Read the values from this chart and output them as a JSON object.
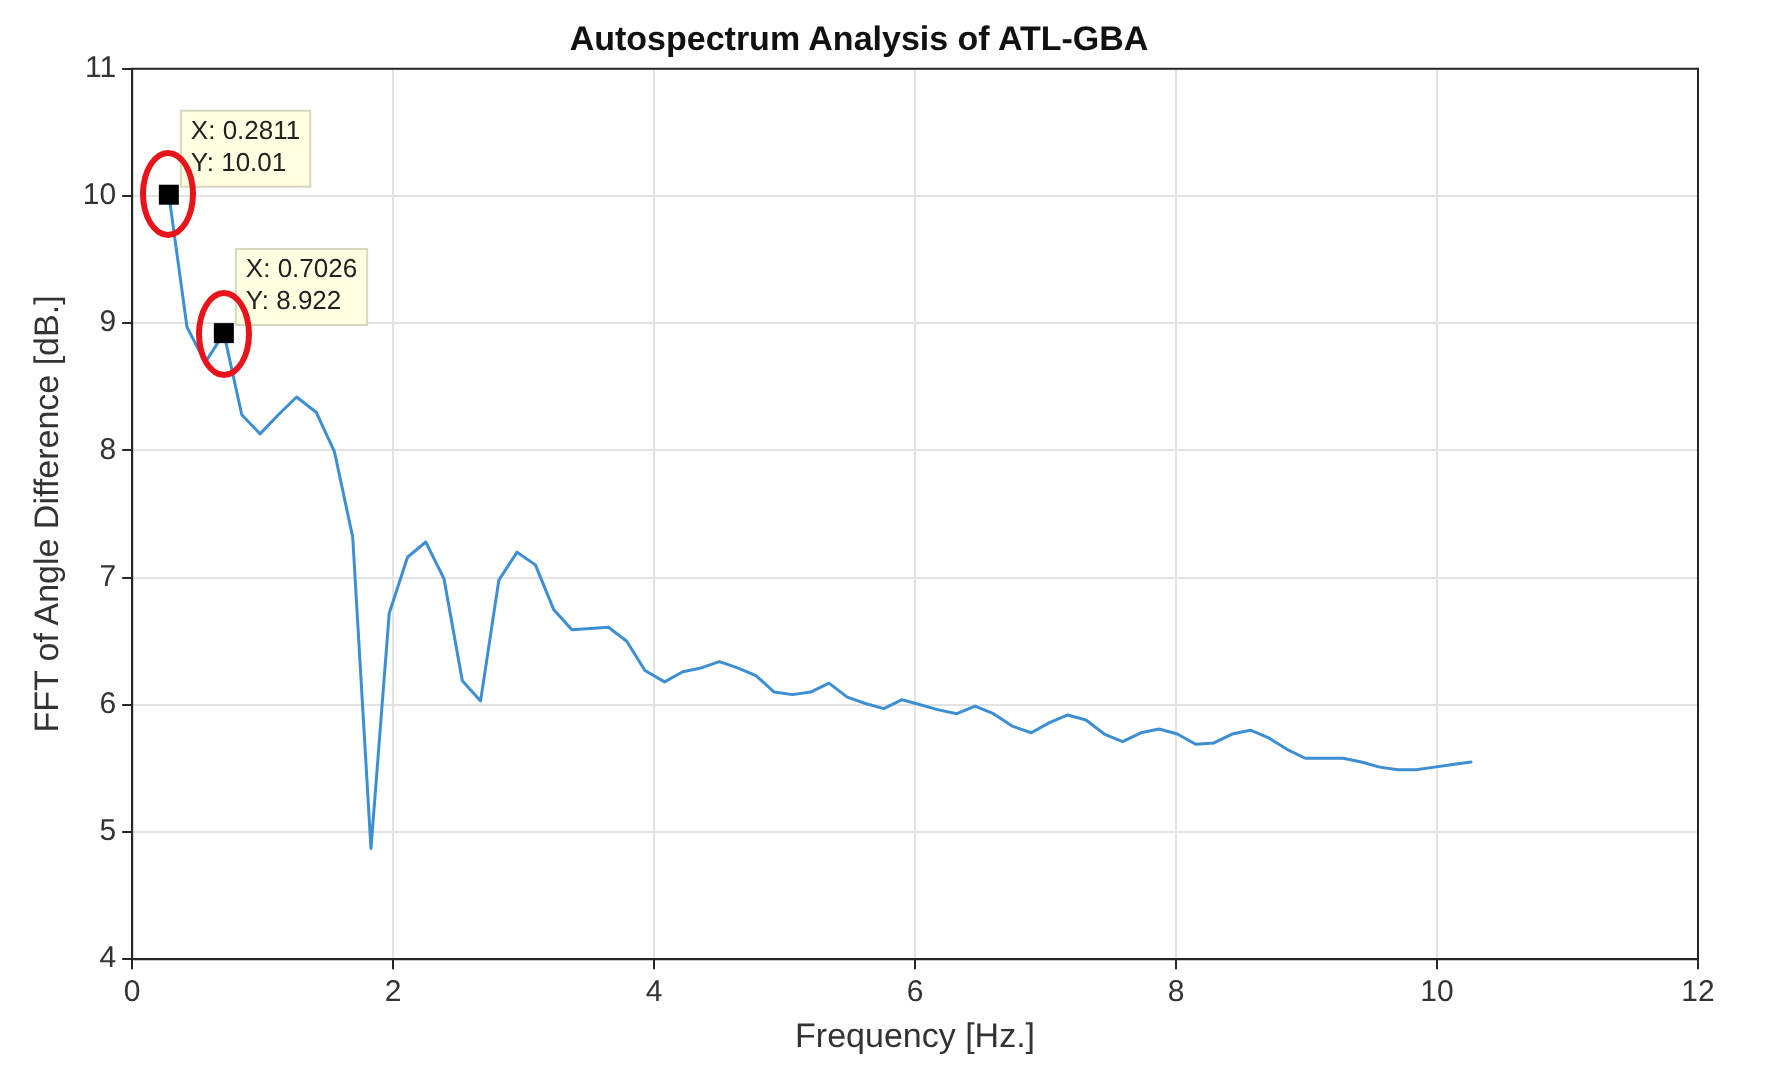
{
  "chart_data": {
    "type": "line",
    "title": "Autospectrum Analysis of ATL-GBA",
    "xlabel": "Frequency [Hz.]",
    "ylabel": "FFT of Angle Difference [dB.]",
    "xlim": [
      0,
      12
    ],
    "xticks": [
      0,
      2,
      4,
      6,
      8,
      10,
      12
    ],
    "ylim": [
      4,
      11
    ],
    "yticks": [
      4,
      5,
      6,
      7,
      8,
      9,
      10,
      11
    ],
    "grid": true,
    "marker": "none",
    "line_style": "solid",
    "series": [
      {
        "color": "#3d8fd3",
        "x": [
          0.2811,
          0.42,
          0.56,
          0.7026,
          0.84,
          0.98,
          1.12,
          1.26,
          1.41,
          1.55,
          1.69,
          1.83,
          1.97,
          2.11,
          2.25,
          2.39,
          2.53,
          2.67,
          2.81,
          2.95,
          3.09,
          3.23,
          3.37,
          3.51,
          3.65,
          3.79,
          3.93,
          4.08,
          4.22,
          4.36,
          4.5,
          4.64,
          4.78,
          4.92,
          5.06,
          5.2,
          5.34,
          5.48,
          5.62,
          5.76,
          5.9,
          6.04,
          6.18,
          6.32,
          6.46,
          6.6,
          6.75,
          6.89,
          7.03,
          7.17,
          7.31,
          7.45,
          7.59,
          7.73,
          7.87,
          8.01,
          8.15,
          8.29,
          8.43,
          8.57,
          8.71,
          8.85,
          8.99,
          9.13,
          9.28,
          9.42,
          9.56,
          9.7,
          9.84,
          9.98,
          10.12,
          10.26
        ],
        "values": [
          10.01,
          8.97,
          8.69,
          8.922,
          8.28,
          8.13,
          8.28,
          8.42,
          8.3,
          7.99,
          7.32,
          4.87,
          6.72,
          7.16,
          7.28,
          6.99,
          6.19,
          6.03,
          6.98,
          7.2,
          7.1,
          6.75,
          6.59,
          6.6,
          6.61,
          6.5,
          6.27,
          6.18,
          6.26,
          6.29,
          6.34,
          6.29,
          6.23,
          6.1,
          6.08,
          6.1,
          6.17,
          6.06,
          6.01,
          5.97,
          6.04,
          6.0,
          5.96,
          5.93,
          5.99,
          5.93,
          5.83,
          5.78,
          5.86,
          5.92,
          5.88,
          5.77,
          5.71,
          5.78,
          5.81,
          5.77,
          5.69,
          5.7,
          5.77,
          5.8,
          5.74,
          5.65,
          5.58,
          5.58,
          5.58,
          5.55,
          5.51,
          5.49,
          5.49,
          5.51,
          5.53,
          5.55
        ]
      }
    ],
    "annotations": [
      {
        "text": "X: 0.2811\nY: 10.01",
        "x": 0.2811,
        "y": 10.01
      },
      {
        "text": "X: 0.7026\nY: 8.922",
        "x": 0.7026,
        "y": 8.922
      }
    ]
  }
}
